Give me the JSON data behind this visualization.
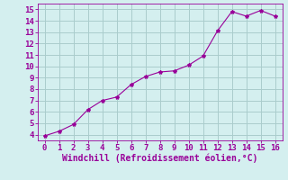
{
  "x": [
    0,
    1,
    2,
    3,
    4,
    5,
    6,
    7,
    8,
    9,
    10,
    11,
    12,
    13,
    14,
    15,
    16
  ],
  "y": [
    3.9,
    4.3,
    4.9,
    6.2,
    7.0,
    7.3,
    8.4,
    9.1,
    9.5,
    9.6,
    10.1,
    10.9,
    13.1,
    14.8,
    14.4,
    14.9,
    14.4
  ],
  "line_color": "#990099",
  "marker": "*",
  "marker_size": 3,
  "bg_color": "#d4efef",
  "grid_color": "#aacccc",
  "xlabel": "Windchill (Refroidissement éolien,°C)",
  "xlabel_color": "#990099",
  "tick_color": "#990099",
  "ylim": [
    3.5,
    15.5
  ],
  "xlim": [
    -0.5,
    16.5
  ],
  "yticks": [
    4,
    5,
    6,
    7,
    8,
    9,
    10,
    11,
    12,
    13,
    14,
    15
  ],
  "xticks": [
    0,
    1,
    2,
    3,
    4,
    5,
    6,
    7,
    8,
    9,
    10,
    11,
    12,
    13,
    14,
    15,
    16
  ],
  "tick_fontsize": 6.5,
  "xlabel_fontsize": 7
}
